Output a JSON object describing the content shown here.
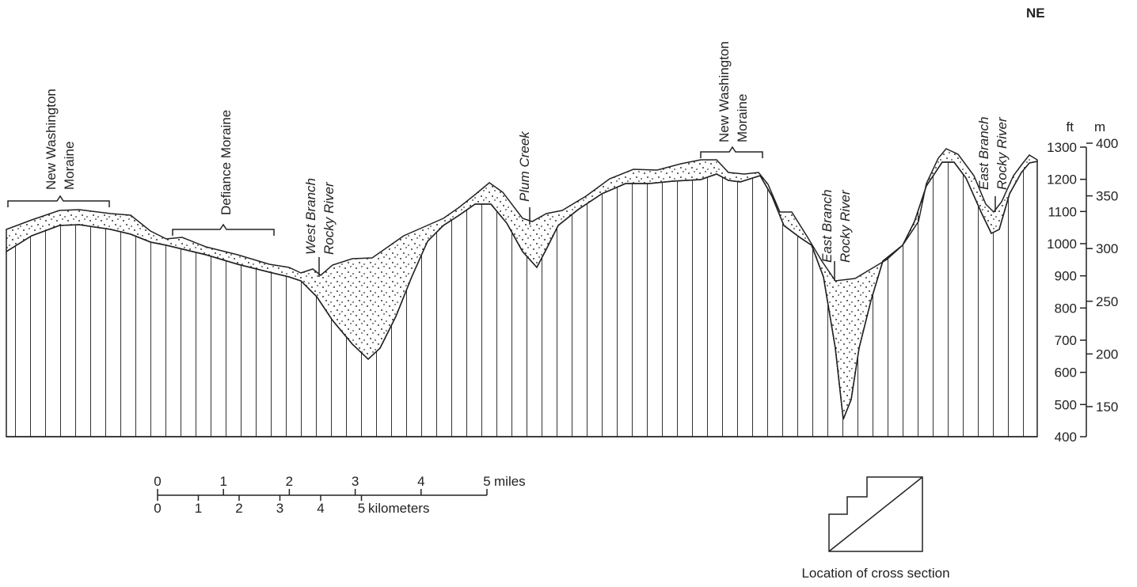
{
  "direction": "NE",
  "labels": [
    {
      "lines": [
        "New Washington",
        "Moraine"
      ]
    },
    {
      "lines": [
        "Defiance Moraine"
      ]
    },
    {
      "lines": [
        "West Branch",
        "Rocky River"
      ]
    },
    {
      "lines": [
        "Plum Creek"
      ]
    },
    {
      "lines": [
        "New Washington",
        "Moraine"
      ]
    },
    {
      "lines": [
        "East Branch",
        "Rocky River"
      ]
    },
    {
      "lines": [
        "East Branch",
        "Rocky River"
      ]
    }
  ],
  "axis": {
    "ft_unit": "ft",
    "m_unit": "m",
    "ft_ticks": [
      400,
      500,
      600,
      700,
      800,
      900,
      1000,
      1100,
      1200,
      1300
    ],
    "m_ticks": [
      150,
      200,
      250,
      300,
      350,
      400
    ]
  },
  "scale": {
    "miles_ticks": [
      0,
      1,
      2,
      3,
      4,
      5
    ],
    "miles_unit": "miles",
    "km_ticks": [
      0,
      1,
      2,
      3,
      4,
      5
    ],
    "km_unit": "kilometers"
  },
  "location_caption": "Location of cross section"
}
